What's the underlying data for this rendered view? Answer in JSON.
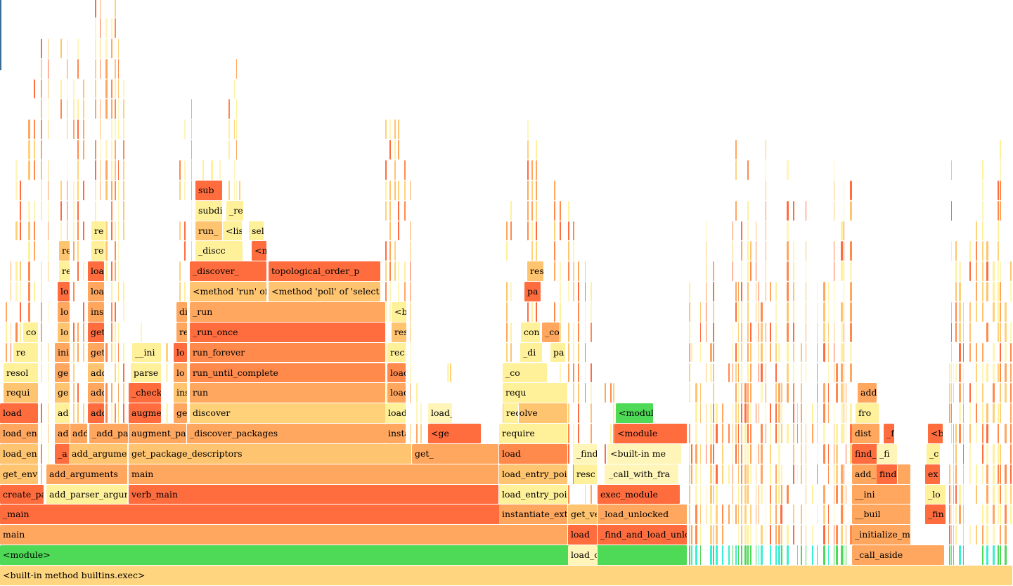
{
  "colors": {
    "red": "#ff6d3f",
    "orange": "#ff8a4c",
    "lightorange": "#ffa75f",
    "peach": "#ffc46f",
    "sand": "#ffd27a",
    "lightyellow": "#fff09a",
    "paleyellow": "#fff5b8",
    "green": "#4ed957",
    "cyan": "#39f0d0",
    "base": "#ffd57f"
  },
  "frames": [
    {
      "label": "<built-in method builtins.exec>",
      "c": "base"
    },
    {
      "label": "<module>",
      "c": "green"
    },
    {
      "label": "main",
      "c": "lightorange"
    },
    {
      "label": "_main",
      "c": "red"
    },
    {
      "label": "create_pa",
      "c": "red"
    },
    {
      "label": "get_env",
      "c": "peach"
    },
    {
      "label": "load_en",
      "c": "peach"
    },
    {
      "label": "load_en",
      "c": "lightorange"
    },
    {
      "label": "load",
      "c": "red"
    },
    {
      "label": "requi",
      "c": "peach"
    },
    {
      "label": "resol",
      "c": "lightyellow"
    },
    {
      "label": "re",
      "c": "lightyellow"
    },
    {
      "label": "co",
      "c": "lightyellow"
    },
    {
      "label": "add_parser_argume",
      "c": "lightyellow"
    },
    {
      "label": "add_arguments",
      "c": "lightorange"
    },
    {
      "label": "_a",
      "c": "red"
    },
    {
      "label": "add_argumen",
      "c": "peach"
    },
    {
      "label": "add_",
      "c": "lightorange"
    },
    {
      "label": "ad",
      "c": "lightorange"
    },
    {
      "label": "ad",
      "c": "lightyellow"
    },
    {
      "label": "ge",
      "c": "peach"
    },
    {
      "label": "ge",
      "c": "lightorange"
    },
    {
      "label": "ini",
      "c": "lightorange"
    },
    {
      "label": "lo",
      "c": "peach"
    },
    {
      "label": "lo",
      "c": "lightorange"
    },
    {
      "label": "lo",
      "c": "red"
    },
    {
      "label": "re",
      "c": "lightyellow"
    },
    {
      "label": "re",
      "c": "peach"
    },
    {
      "label": "_add_pac",
      "c": "lightorange"
    },
    {
      "label": "add",
      "c": "red"
    },
    {
      "label": "add",
      "c": "lightorange"
    },
    {
      "label": "add",
      "c": "peach"
    },
    {
      "label": "get",
      "c": "lightorange"
    },
    {
      "label": "get",
      "c": "red"
    },
    {
      "label": "ins",
      "c": "lightorange"
    },
    {
      "label": "loa",
      "c": "lightorange"
    },
    {
      "label": "loa",
      "c": "red"
    },
    {
      "label": "re",
      "c": "lightyellow"
    },
    {
      "label": "re",
      "c": "lightyellow"
    },
    {
      "label": "verb_main",
      "c": "red"
    },
    {
      "label": "main",
      "c": "lightorange"
    },
    {
      "label": "get_package_descriptors",
      "c": "peach"
    },
    {
      "label": "augment_pac",
      "c": "lightorange"
    },
    {
      "label": "augmen",
      "c": "red"
    },
    {
      "label": "_check",
      "c": "red"
    },
    {
      "label": "parse",
      "c": "lightyellow"
    },
    {
      "label": "__ini",
      "c": "lightyellow"
    },
    {
      "label": "ge",
      "c": "lightorange"
    },
    {
      "label": "ins",
      "c": "peach"
    },
    {
      "label": "lo",
      "c": "lightorange"
    },
    {
      "label": "lo",
      "c": "red"
    },
    {
      "label": "re",
      "c": "lightorange"
    },
    {
      "label": "discover_packages",
      "c": "lightorange"
    },
    {
      "label": "_discover_packages",
      "c": "lightorange"
    },
    {
      "label": "discover",
      "c": "sand"
    },
    {
      "label": "run",
      "c": "lightorange"
    },
    {
      "label": "run_until_complete",
      "c": "orange"
    },
    {
      "label": "run_forever",
      "c": "orange"
    },
    {
      "label": "_run_once",
      "c": "red"
    },
    {
      "label": "_run",
      "c": "lightorange"
    },
    {
      "label": "<method 'run' of 'C",
      "c": "peach"
    },
    {
      "label": "_discover_",
      "c": "red"
    },
    {
      "label": "_discc",
      "c": "lightyellow"
    },
    {
      "label": "run_",
      "c": "peach"
    },
    {
      "label": "<listc",
      "c": "lightyellow"
    },
    {
      "label": "subdi",
      "c": "lightyellow"
    },
    {
      "label": "sub",
      "c": "red"
    },
    {
      "label": "_re",
      "c": "lightyellow"
    },
    {
      "label": "<m",
      "c": "red"
    },
    {
      "label": "select",
      "c": "lightyellow"
    },
    {
      "label": "<method 'poll' of 'select.ep",
      "c": "peach"
    },
    {
      "label": "topological_order_p",
      "c": "red"
    },
    {
      "label": "get_",
      "c": "lightorange"
    },
    {
      "label": "insta",
      "c": "lightorange"
    },
    {
      "label": "load",
      "c": "lightyellow"
    },
    {
      "label": "load",
      "c": "lightorange"
    },
    {
      "label": "load",
      "c": "orange"
    },
    {
      "label": "rec",
      "c": "lightyellow"
    },
    {
      "label": "res",
      "c": "peach"
    },
    {
      "label": "<built-in me",
      "c": "lightyellow"
    },
    {
      "label": "<ge",
      "c": "red"
    },
    {
      "label": "load_c",
      "c": "paleyellow"
    },
    {
      "label": "load_c",
      "c": "paleyellow"
    },
    {
      "label": "load",
      "c": "red"
    },
    {
      "label": "get_verb_extens",
      "c": "peach"
    },
    {
      "label": "instantiate_exte",
      "c": "lightorange"
    },
    {
      "label": "load_entry_poin",
      "c": "lightyellow"
    },
    {
      "label": "load_entry_poi",
      "c": "peach"
    },
    {
      "label": "load",
      "c": "orange"
    },
    {
      "label": "require",
      "c": "lightyellow"
    },
    {
      "label": "resolve",
      "c": "peach"
    },
    {
      "label": "requ",
      "c": "lightyellow"
    },
    {
      "label": "_co",
      "c": "lightyellow"
    },
    {
      "label": "_di",
      "c": "lightyellow"
    },
    {
      "label": "cont",
      "c": "lightyellow"
    },
    {
      "label": "_co",
      "c": "lightorange"
    },
    {
      "label": "pa",
      "c": "lightyellow"
    },
    {
      "label": "pa",
      "c": "red"
    },
    {
      "label": "res",
      "c": "peach"
    },
    {
      "label": "requ",
      "c": "lightyellow"
    },
    {
      "label": "resc",
      "c": "lightyellow"
    },
    {
      "label": "_find_and_load",
      "c": "paleyellow"
    },
    {
      "label": "_find_and_load_unlo",
      "c": "red"
    },
    {
      "label": "_load_unlocked",
      "c": "lightorange"
    },
    {
      "label": "exec_module",
      "c": "red"
    },
    {
      "label": "_call_with_fra",
      "c": "paleyellow"
    },
    {
      "label": "<built-in me",
      "c": "paleyellow"
    },
    {
      "label": "<module",
      "c": "red"
    },
    {
      "label": "<module>",
      "c": "green"
    },
    {
      "label": "_call_aside",
      "c": "lightorange"
    },
    {
      "label": "_initialize_m",
      "c": "lightorange"
    },
    {
      "label": "__buil",
      "c": "lightorange"
    },
    {
      "label": "__ini",
      "c": "lightorange"
    },
    {
      "label": "add_",
      "c": "lightorange"
    },
    {
      "label": "find_",
      "c": "red"
    },
    {
      "label": "dist",
      "c": "lightorange"
    },
    {
      "label": "fro",
      "c": "lightyellow"
    },
    {
      "label": "add",
      "c": "lightorange"
    },
    {
      "label": "find",
      "c": "red"
    },
    {
      "label": "_fi",
      "c": "paleyellow"
    },
    {
      "label": "_fin",
      "c": "red"
    },
    {
      "label": "_fin",
      "c": "red"
    },
    {
      "label": "_lo",
      "c": "lightyellow"
    },
    {
      "label": "ex",
      "c": "red"
    },
    {
      "label": "_c",
      "c": "lightyellow"
    },
    {
      "label": "<bu",
      "c": "red"
    }
  ]
}
